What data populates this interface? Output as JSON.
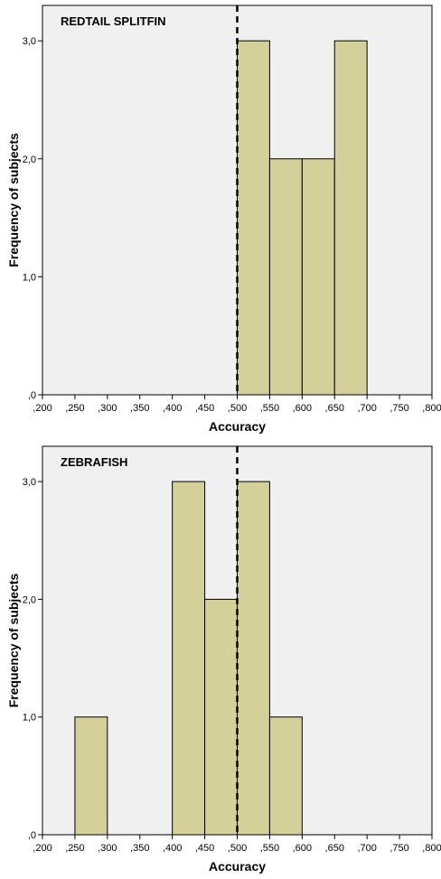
{
  "chart_data": [
    {
      "type": "bar",
      "title": "REDTAIL SPLITFIN",
      "xlabel": "Accuracy",
      "ylabel": "Frequency of subjects",
      "x_ticks": [
        ",200",
        ",250",
        ",300",
        ",350",
        ",400",
        ",450",
        ",500",
        ",550",
        ",600",
        ",650",
        ",700",
        ",750",
        ",800"
      ],
      "y_ticks": [
        ",0",
        "1,0",
        "2,0",
        "3,0"
      ],
      "xlim": [
        0.2,
        0.8
      ],
      "ylim": [
        0,
        3.3
      ],
      "bins": [
        {
          "from": 0.5,
          "to": 0.55,
          "count": 3
        },
        {
          "from": 0.55,
          "to": 0.6,
          "count": 2
        },
        {
          "from": 0.6,
          "to": 0.65,
          "count": 2
        },
        {
          "from": 0.65,
          "to": 0.7,
          "count": 3
        }
      ],
      "reference_line": {
        "x": 0.5,
        "style": "dashed"
      },
      "grid": false
    },
    {
      "type": "bar",
      "title": "ZEBRAFISH",
      "xlabel": "Accuracy",
      "ylabel": "Frequency of subjects",
      "x_ticks": [
        ",200",
        ",250",
        ",300",
        ",350",
        ",400",
        ",450",
        ",500",
        ",550",
        ",600",
        ",650",
        ",700",
        ",750",
        ",800"
      ],
      "y_ticks": [
        ",0",
        "1,0",
        "2,0",
        "3,0"
      ],
      "xlim": [
        0.2,
        0.8
      ],
      "ylim": [
        0,
        3.3
      ],
      "bins": [
        {
          "from": 0.25,
          "to": 0.3,
          "count": 1
        },
        {
          "from": 0.4,
          "to": 0.45,
          "count": 3
        },
        {
          "from": 0.45,
          "to": 0.5,
          "count": 2
        },
        {
          "from": 0.5,
          "to": 0.55,
          "count": 3
        },
        {
          "from": 0.55,
          "to": 0.6,
          "count": 1
        }
      ],
      "reference_line": {
        "x": 0.5,
        "style": "dashed"
      },
      "grid": false
    }
  ]
}
